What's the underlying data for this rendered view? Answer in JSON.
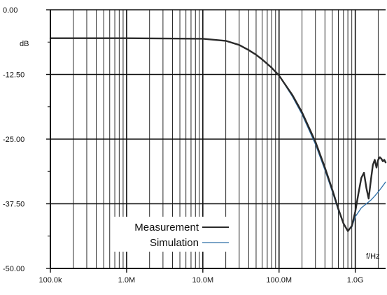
{
  "chart_data": {
    "type": "line",
    "title": "",
    "xlabel": "f/Hz",
    "ylabel": "dB",
    "x_scale": "log",
    "xlim": [
      100000,
      2500000000
    ],
    "ylim": [
      -50,
      0
    ],
    "x_ticks": [
      100000,
      1000000,
      10000000,
      100000000,
      1000000000
    ],
    "x_tick_labels": [
      "100.0k",
      "1.0M",
      "10.0M",
      "100.0M",
      "1.0G"
    ],
    "y_ticks": [
      0,
      -12.5,
      -25,
      -37.5,
      -50
    ],
    "y_tick_labels": [
      "0.00",
      "-12.50",
      "-25.00",
      "-37.50",
      "-50.00"
    ],
    "grid": true,
    "legend_position": "bottom-left",
    "series": [
      {
        "name": "Measurement",
        "color": "#2a2a2a",
        "x": [
          100000,
          1000000,
          10000000,
          20000000,
          30000000,
          40000000,
          50000000,
          60000000,
          80000000,
          100000000,
          150000000,
          200000000,
          300000000,
          400000000,
          500000000,
          600000000,
          700000000,
          800000000,
          900000000,
          1000000000,
          1100000000,
          1200000000,
          1300000000,
          1400000000,
          1500000000,
          1600000000,
          1700000000,
          1800000000,
          1900000000,
          2000000000,
          2100000000,
          2200000000,
          2300000000,
          2400000000,
          2500000000
        ],
        "y": [
          -5.5,
          -5.5,
          -5.6,
          -6.0,
          -6.8,
          -7.8,
          -8.7,
          -9.6,
          -11.2,
          -12.7,
          -16.5,
          -19.8,
          -25.5,
          -30.5,
          -34.8,
          -38.5,
          -41.3,
          -42.8,
          -41.8,
          -39.0,
          -35.5,
          -32.5,
          -31.5,
          -34.5,
          -36.5,
          -33.0,
          -30.0,
          -29.0,
          -30.5,
          -29.0,
          -28.5,
          -28.8,
          -29.3,
          -29.0,
          -29.5
        ]
      },
      {
        "name": "Simulation",
        "color": "#2e6fa8",
        "x": [
          100000,
          1000000,
          10000000,
          20000000,
          30000000,
          40000000,
          50000000,
          60000000,
          80000000,
          100000000,
          150000000,
          200000000,
          300000000,
          400000000,
          500000000,
          600000000,
          700000000,
          800000000,
          900000000,
          1000000000,
          1200000000,
          1400000000,
          1600000000,
          1800000000,
          2000000000,
          2200000000,
          2500000000
        ],
        "y": [
          -5.5,
          -5.5,
          -5.6,
          -6.0,
          -6.8,
          -7.8,
          -8.7,
          -9.6,
          -11.2,
          -12.7,
          -16.8,
          -20.2,
          -26.0,
          -31.0,
          -35.2,
          -38.8,
          -41.4,
          -42.7,
          -42.0,
          -40.0,
          -38.3,
          -37.5,
          -36.8,
          -36.0,
          -35.2,
          -34.4,
          -33.3
        ]
      }
    ]
  }
}
